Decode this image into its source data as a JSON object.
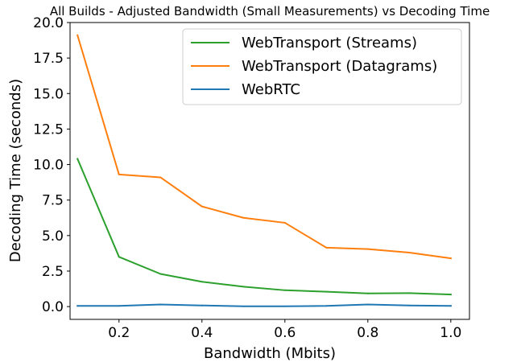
{
  "chart_data": {
    "type": "line",
    "title": "All Builds - Adjusted Bandwidth (Small Measurements) vs Decoding Time",
    "xlabel": "Bandwidth (Mbits)",
    "ylabel": "Decoding Time (seconds)",
    "xlim": [
      0.082,
      1.045
    ],
    "ylim": [
      -0.9,
      20.0
    ],
    "xticks": [
      0.2,
      0.4,
      0.6,
      0.8,
      1.0
    ],
    "xtick_labels": [
      "0.2",
      "0.4",
      "0.6",
      "0.8",
      "1.0"
    ],
    "yticks": [
      0.0,
      2.5,
      5.0,
      7.5,
      10.0,
      12.5,
      15.0,
      17.5,
      20.0
    ],
    "ytick_labels": [
      "0.0",
      "2.5",
      "5.0",
      "7.5",
      "10.0",
      "12.5",
      "15.0",
      "17.5",
      "20.0"
    ],
    "x": [
      0.1,
      0.2,
      0.3,
      0.4,
      0.5,
      0.6,
      0.7,
      0.8,
      0.9,
      1.0
    ],
    "grid": false,
    "legend_position": "top-right",
    "series": [
      {
        "name": "WebTransport (Streams)",
        "color": "#2ca02c",
        "values": [
          10.4,
          3.5,
          2.3,
          1.75,
          1.4,
          1.15,
          1.05,
          0.93,
          0.95,
          0.85
        ]
      },
      {
        "name": "WebTransport (Datagrams)",
        "color": "#ff7f0e",
        "values": [
          19.1,
          9.3,
          9.1,
          7.05,
          6.25,
          5.9,
          4.15,
          4.05,
          3.8,
          3.4
        ]
      },
      {
        "name": "WebRTC",
        "color": "#1f77b4",
        "values": [
          0.05,
          0.05,
          0.15,
          0.08,
          0.02,
          0.02,
          0.05,
          0.15,
          0.08,
          0.05
        ]
      }
    ]
  }
}
